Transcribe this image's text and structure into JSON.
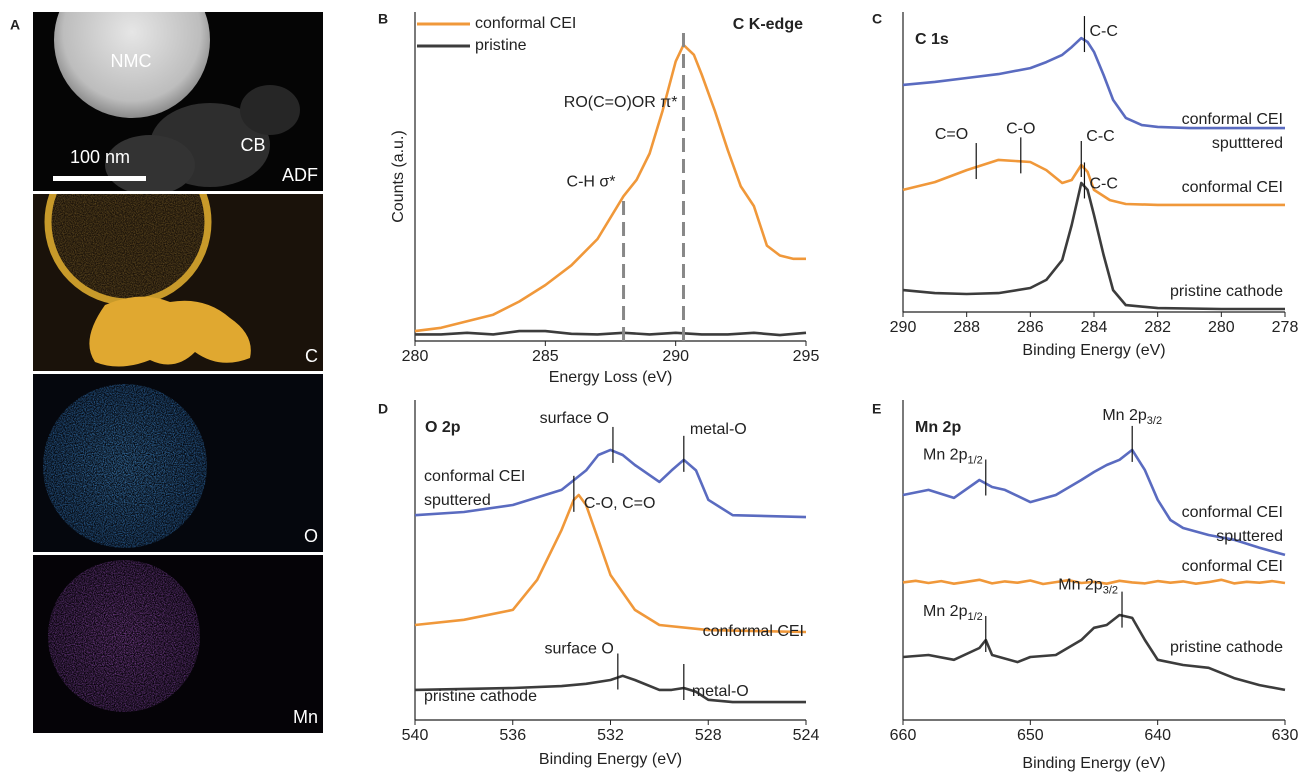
{
  "panel_a": {
    "letter": "A",
    "texts": [
      "NMC",
      "CB",
      "100 nm",
      "ADF",
      "C",
      "O",
      "Mn"
    ]
  },
  "chart_data": [
    {
      "type": "line",
      "panel": "B",
      "title": "C K-edge",
      "xlabel": "Energy Loss (eV)",
      "ylabel": "Counts (a.u.)",
      "xlim": [
        280,
        295
      ],
      "xticks": [
        280,
        285,
        290,
        295
      ],
      "ylim": [
        0,
        1
      ],
      "legend": "upper left",
      "series": [
        {
          "name": "conformal CEI",
          "color": "#f0983a",
          "x": [
            280,
            281,
            282,
            283,
            284,
            285,
            286,
            287,
            288,
            288.5,
            289,
            289.5,
            290,
            290.3,
            290.7,
            291,
            291.5,
            292,
            292.5,
            293,
            293.5,
            294,
            294.5,
            295
          ],
          "values": [
            0.03,
            0.04,
            0.06,
            0.08,
            0.12,
            0.17,
            0.23,
            0.31,
            0.44,
            0.49,
            0.57,
            0.7,
            0.85,
            0.9,
            0.87,
            0.81,
            0.7,
            0.58,
            0.47,
            0.41,
            0.29,
            0.26,
            0.25,
            0.25
          ]
        },
        {
          "name": "pristine",
          "color": "#3c3c3c",
          "x": [
            280,
            281,
            282,
            283,
            284,
            285,
            286,
            287,
            288,
            289,
            290,
            291,
            292,
            293,
            294,
            295
          ],
          "values": [
            0.02,
            0.02,
            0.025,
            0.02,
            0.03,
            0.03,
            0.022,
            0.02,
            0.025,
            0.02,
            0.025,
            0.02,
            0.02,
            0.025,
            0.018,
            0.025
          ]
        }
      ],
      "annotations": [
        {
          "text": "C-H σ*",
          "x": 288
        },
        {
          "text": "RO(C=O)OR π*",
          "x": 290.3
        }
      ]
    },
    {
      "type": "line",
      "panel": "C",
      "title": "C 1s",
      "xlabel": "Binding Energy (eV)",
      "xlim": [
        290,
        278
      ],
      "xticks": [
        290,
        288,
        286,
        284,
        282,
        280,
        278
      ],
      "ylim": [
        0,
        100
      ],
      "series": [
        {
          "label_lines": [
            "conformal CEI",
            "sputttered"
          ],
          "color": "#5a6bc0",
          "x": [
            290,
            289,
            288,
            287,
            286,
            285.5,
            285,
            284.7,
            284.4,
            284.2,
            284,
            283.7,
            283.4,
            283,
            282.5,
            282,
            281,
            280,
            279,
            278
          ],
          "values": [
            75.7,
            76.7,
            78,
            79.3,
            81.3,
            83.3,
            85.7,
            88.3,
            91.3,
            90,
            86.7,
            79,
            70.7,
            64.7,
            62.3,
            61.7,
            61.3,
            61.3,
            61.3,
            61.3
          ],
          "annotations": [
            {
              "text": "C-C",
              "x": 284.3
            }
          ]
        },
        {
          "label_lines": [
            "conformal CEI"
          ],
          "color": "#f0983a",
          "x": [
            290,
            289,
            288,
            287,
            286,
            285.5,
            285,
            284.7,
            284.4,
            284.2,
            284,
            283.5,
            283,
            282,
            280,
            278
          ],
          "values": [
            40.7,
            43.3,
            47.3,
            50.7,
            50,
            47.3,
            43,
            44,
            49,
            46.7,
            40.7,
            37.3,
            36,
            35.7,
            35.7,
            35.7
          ],
          "annotations": [
            {
              "text": "C=O",
              "x": 287.7
            },
            {
              "text": "C-O",
              "x": 286.3
            },
            {
              "text": "C-C",
              "x": 284.4
            }
          ]
        },
        {
          "label_lines": [
            "pristine cathode"
          ],
          "color": "#3c3c3c",
          "x": [
            290,
            289,
            288,
            287,
            286,
            285.5,
            285,
            284.7,
            284.4,
            284.2,
            284,
            283.7,
            283.4,
            283,
            282,
            280,
            278
          ],
          "values": [
            7.3,
            6.3,
            6,
            6.3,
            8,
            10.7,
            17.3,
            29,
            43,
            40.7,
            32.3,
            19,
            7.3,
            2.3,
            1.3,
            1,
            1
          ],
          "annotations": [
            {
              "text": "C-C",
              "x": 284.3
            }
          ]
        }
      ]
    },
    {
      "type": "line",
      "panel": "D",
      "title": "O 2p",
      "xlabel": "Binding Energy (eV)",
      "xlim": [
        540,
        524
      ],
      "xticks": [
        540,
        536,
        532,
        528,
        524
      ],
      "ylim": [
        0,
        100
      ],
      "series": [
        {
          "label_lines": [
            "conformal CEI",
            "sputtered"
          ],
          "color": "#5a6bc0",
          "x": [
            540,
            538,
            536,
            534,
            533,
            532.5,
            532,
            531.5,
            531,
            530,
            529.5,
            529,
            528.5,
            528,
            527,
            524
          ],
          "values": [
            64,
            65,
            67.2,
            71.9,
            78,
            82.8,
            84.4,
            82.8,
            79.7,
            74.4,
            78,
            81.3,
            78,
            68.8,
            64,
            63.4
          ],
          "annotations": [
            {
              "text": "surface O",
              "x": 531.9
            },
            {
              "text": "metal-O",
              "x": 529
            }
          ]
        },
        {
          "label_lines": [
            "conformal CEI"
          ],
          "color": "#f0983a",
          "x": [
            540,
            538,
            536,
            535,
            534,
            533.5,
            533.3,
            533,
            532.5,
            532,
            531,
            530,
            528,
            524
          ],
          "values": [
            29.7,
            31.3,
            34.4,
            43.8,
            59.4,
            68.8,
            70.3,
            67.2,
            56.3,
            45.3,
            34.4,
            29.7,
            28.1,
            27.5
          ],
          "annotations": [
            {
              "text": "C-O, C=O",
              "x": 533.5
            }
          ]
        },
        {
          "label_lines": [
            "pristine cathode"
          ],
          "color": "#3c3c3c",
          "x": [
            540,
            536,
            534,
            533,
            532,
            531.5,
            531,
            530,
            529.5,
            529,
            528.5,
            528,
            527,
            524
          ],
          "values": [
            9.4,
            10,
            10.6,
            11.3,
            12.5,
            13.8,
            12.5,
            9.4,
            9.4,
            10,
            8.8,
            6.3,
            5.6,
            5.6
          ],
          "annotations": [
            {
              "text": "surface O",
              "x": 531.7
            },
            {
              "text": "metal-O",
              "x": 529
            }
          ]
        }
      ]
    },
    {
      "type": "line",
      "panel": "E",
      "title": "Mn 2p",
      "xlabel": "Binding Energy (eV)",
      "xlim": [
        660,
        630
      ],
      "xticks": [
        660,
        650,
        640,
        630
      ],
      "ylim": [
        0,
        100
      ],
      "series": [
        {
          "label_lines": [
            "conformal CEI",
            "sputtered"
          ],
          "color": "#5a6bc0",
          "x": [
            660,
            658,
            656,
            654,
            653,
            652,
            650,
            648,
            646,
            645,
            644,
            643,
            642,
            641,
            640,
            639,
            638,
            636,
            634,
            632,
            630
          ],
          "values": [
            70.3,
            71.9,
            69.4,
            75,
            72.8,
            71.9,
            68.1,
            70.3,
            75,
            77.5,
            79.7,
            81.3,
            84.4,
            78.1,
            68.8,
            62.5,
            60,
            57.8,
            56.3,
            53.8,
            51.6
          ],
          "annotations": [
            {
              "text": "Mn 2p",
              "subscript": "1/2",
              "x": 653.5
            },
            {
              "text": "Mn 2p",
              "subscript": "3/2",
              "x": 642
            }
          ]
        },
        {
          "label_lines": [
            "conformal CEI"
          ],
          "color": "#f0983a",
          "x": [
            660,
            659,
            658,
            657,
            656,
            655,
            654,
            653,
            652,
            651,
            650,
            649,
            648,
            647,
            646,
            645,
            644,
            643,
            642,
            641,
            640,
            639,
            638,
            637,
            636,
            635,
            634,
            633,
            632,
            631,
            630
          ],
          "values": [
            43,
            43.5,
            42.8,
            43.4,
            42.6,
            43.2,
            43.8,
            42.7,
            43.3,
            42.9,
            43.6,
            42.5,
            43.1,
            43.7,
            42.8,
            43.2,
            42.6,
            43.5,
            43,
            42.7,
            43.4,
            42.9,
            43.3,
            42.6,
            43.1,
            43.8,
            42.7,
            43.2,
            42.9,
            43.4,
            42.8
          ]
        },
        {
          "label_lines": [
            "pristine cathode"
          ],
          "color": "#3c3c3c",
          "x": [
            660,
            658,
            656,
            654,
            653.5,
            653,
            651,
            650,
            648,
            646,
            645,
            644,
            643,
            642,
            641,
            640,
            638,
            636,
            634,
            632,
            630
          ],
          "values": [
            19.7,
            20.3,
            18.8,
            22.5,
            25,
            20.3,
            18.1,
            19.7,
            20.3,
            25,
            28.8,
            29.7,
            32.8,
            31.9,
            25,
            18.8,
            17.2,
            16.3,
            13.1,
            10.9,
            9.4
          ],
          "annotations": [
            {
              "text": "Mn 2p",
              "subscript": "1/2",
              "x": 653.5
            },
            {
              "text": "Mn 2p",
              "subscript": "3/2",
              "x": 642.8
            }
          ]
        }
      ]
    }
  ]
}
